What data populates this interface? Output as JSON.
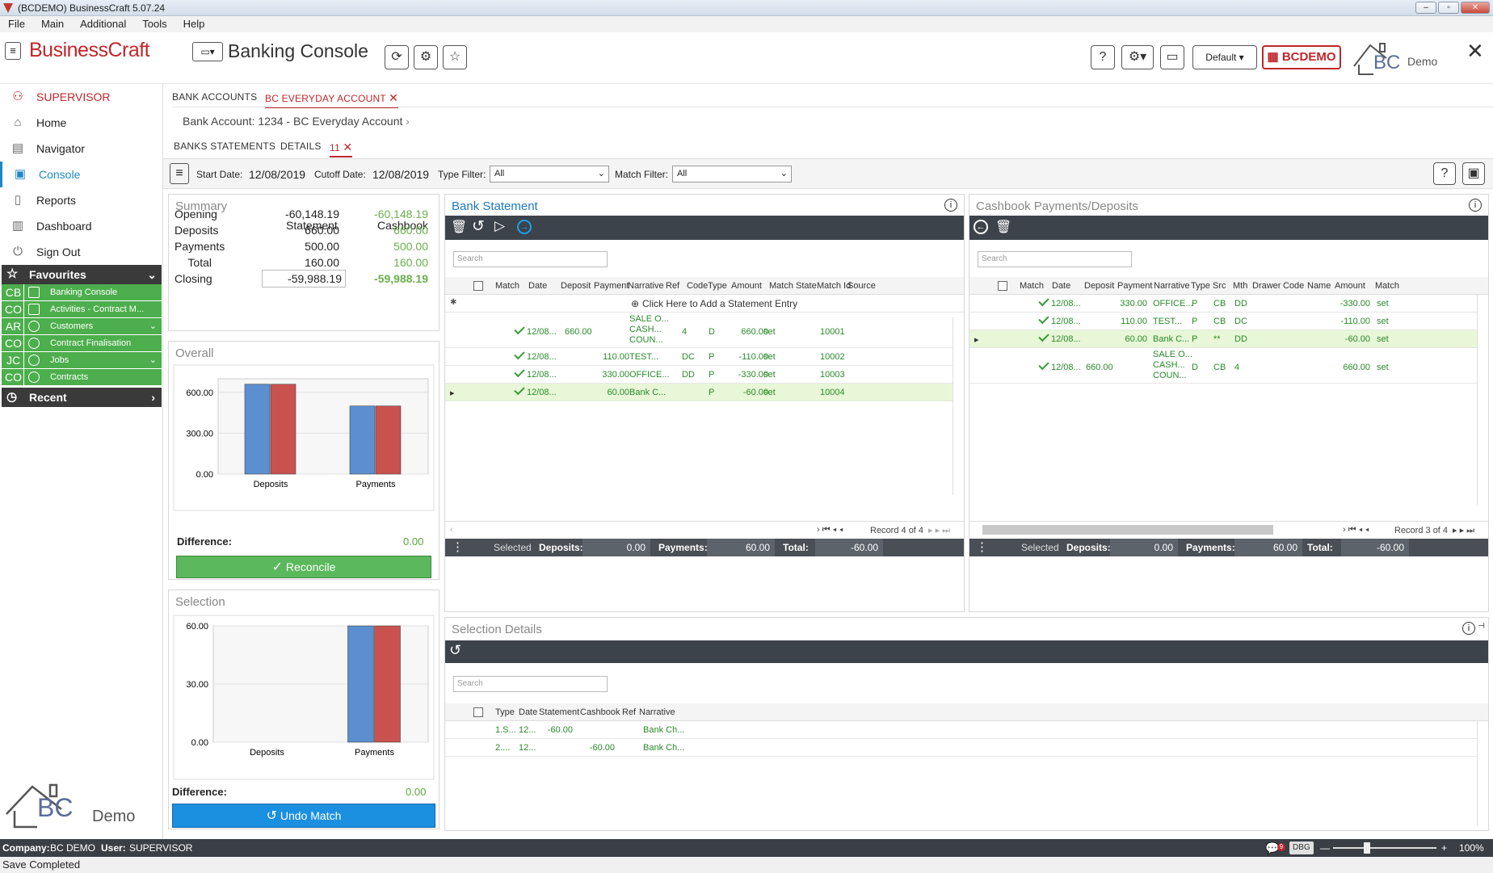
{
  "window": {
    "title": "(BCDEMO) BusinessCraft  5.07.24"
  },
  "menu": [
    "File",
    "Main",
    "Additional",
    "Tools",
    "Help"
  ],
  "header": {
    "brand": "BusinessCraft",
    "module_title": "Banking Console",
    "profile_label": "Default",
    "company_badge": "BCDEMO",
    "logo_text": "BC",
    "logo_sub": "Demo"
  },
  "sidebar": {
    "user": "SUPERVISOR",
    "items": [
      "Home",
      "Navigator",
      "Console",
      "Reports",
      "Dashboard",
      "Sign Out"
    ],
    "favourites_label": "Favourites",
    "favourites": [
      {
        "code": "CB",
        "label": "Banking Console"
      },
      {
        "code": "CO",
        "label": "Activities - Contract M..."
      },
      {
        "code": "AR",
        "label": "Customers"
      },
      {
        "code": "CO",
        "label": "Contract Finalisation"
      },
      {
        "code": "JC",
        "label": "Jobs"
      },
      {
        "code": "CO",
        "label": "Contracts"
      }
    ],
    "recent_label": "Recent",
    "logo_text": "BC",
    "logo_sub": "Demo"
  },
  "tabs": {
    "bank_accounts": "BANK ACCOUNTS",
    "active": "BC EVERYDAY ACCOUNT"
  },
  "breadcrumb": "Bank Account: 1234 - BC Everyday Account",
  "subtabs": {
    "statements": "BANKS STATEMENTS",
    "details": "DETAILS",
    "active": "11"
  },
  "filters": {
    "start_label": "Start Date:",
    "start": "12/08/2019",
    "cutoff_label": "Cutoff Date:",
    "cutoff": "12/08/2019",
    "type_label": "Type Filter:",
    "type": "All",
    "match_label": "Match Filter:",
    "match": "All"
  },
  "summary": {
    "title": "Summary",
    "col_statement": "Statement",
    "col_cashbook": "Cashbook",
    "rows": [
      {
        "label": "Opening",
        "statement": "-60,148.19",
        "cashbook": "-60,148.19"
      },
      {
        "label": "Deposits",
        "statement": "660.00",
        "cashbook": "660.00"
      },
      {
        "label": "Payments",
        "statement": "500.00",
        "cashbook": "500.00"
      },
      {
        "label": "Total",
        "statement": "160.00",
        "cashbook": "160.00"
      },
      {
        "label": "Closing",
        "statement": "-59,988.19",
        "cashbook": "-59,988.19"
      }
    ]
  },
  "overall": {
    "title": "Overall",
    "difference_label": "Difference:",
    "difference": "0.00",
    "button": "Reconcile"
  },
  "selection": {
    "title": "Selection",
    "difference_label": "Difference:",
    "difference": "0.00",
    "button": "Undo Match"
  },
  "chart_data": [
    {
      "type": "bar",
      "title": "Overall",
      "categories": [
        "Deposits",
        "Payments"
      ],
      "ylim": [
        0,
        700
      ],
      "yticks": [
        "600.00",
        "300.00",
        "0.00"
      ],
      "series": [
        {
          "values": [
            660,
            500
          ]
        },
        {
          "values": [
            660,
            500
          ]
        }
      ],
      "colors": [
        "#5b8fd0",
        "#c9524f"
      ]
    },
    {
      "type": "bar",
      "title": "Selection",
      "categories": [
        "Deposits",
        "Payments"
      ],
      "ylim": [
        0,
        60
      ],
      "yticks": [
        "60.00",
        "30.00",
        "0.00"
      ],
      "series": [
        {
          "values": [
            0,
            60
          ]
        },
        {
          "values": [
            0,
            60
          ]
        }
      ],
      "colors": [
        "#5b8fd0",
        "#c9524f"
      ]
    }
  ],
  "bank_statement": {
    "title": "Bank Statement",
    "search": "Search",
    "columns": [
      "Match",
      "Date",
      "Deposit",
      "Payment",
      "Narrative",
      "Ref",
      "Code",
      "Type",
      "Amount",
      "Match State",
      "Match Id",
      "Source"
    ],
    "add_entry": "Click Here to Add a Statement Entry",
    "rows": [
      {
        "date": "12/08...",
        "deposit": "660.00",
        "payment": "",
        "narrative": [
          "SALE O...",
          "CASH...",
          "COUN..."
        ],
        "ref": "",
        "code": "4",
        "type": "D",
        "amount": "660.00",
        "state": "set",
        "id": "10001"
      },
      {
        "date": "12/08...",
        "deposit": "",
        "payment": "110.00",
        "narrative": [
          "TEST..."
        ],
        "ref": "",
        "code": "DC",
        "type": "P",
        "amount": "-110.00",
        "state": "set",
        "id": "10002"
      },
      {
        "date": "12/08...",
        "deposit": "",
        "payment": "330.00",
        "narrative": [
          "OFFICE..."
        ],
        "ref": "",
        "code": "DD",
        "type": "P",
        "amount": "-330.00",
        "state": "set",
        "id": "10003"
      },
      {
        "date": "12/08...",
        "deposit": "",
        "payment": "60.00",
        "narrative": [
          "Bank C..."
        ],
        "ref": "",
        "code": "",
        "type": "P",
        "amount": "-60.00",
        "state": "set",
        "id": "10004"
      }
    ],
    "record": "Record 4 of 4",
    "footer": {
      "selected": "Selected",
      "deposits_label": "Deposits:",
      "deposits": "0.00",
      "payments_label": "Payments:",
      "payments": "60.00",
      "total_label": "Total:",
      "total": "-60.00"
    }
  },
  "cashbook": {
    "title": "Cashbook Payments/Deposits",
    "search": "Search",
    "columns": [
      "Match",
      "Date",
      "Deposit",
      "Payment",
      "Narrative",
      "Type",
      "Src",
      "Mth",
      "Drawer",
      "Code",
      "Name",
      "Amount",
      "Match"
    ],
    "rows": [
      {
        "date": "12/08...",
        "deposit": "",
        "payment": "330.00",
        "narrative": [
          "OFFICE..."
        ],
        "type": "P",
        "src": "CB",
        "mth": "DD",
        "amount": "-330.00",
        "match": "set"
      },
      {
        "date": "12/08...",
        "deposit": "",
        "payment": "110.00",
        "narrative": [
          "TEST..."
        ],
        "type": "P",
        "src": "CB",
        "mth": "DC",
        "amount": "-110.00",
        "match": "set"
      },
      {
        "date": "12/08...",
        "deposit": "",
        "payment": "60.00",
        "narrative": [
          "Bank C..."
        ],
        "type": "P",
        "src": "**",
        "mth": "DD",
        "amount": "-60.00",
        "match": "set"
      },
      {
        "date": "12/08...",
        "deposit": "660.00",
        "payment": "",
        "narrative": [
          "SALE O...",
          "CASH...",
          "COUN..."
        ],
        "type": "D",
        "src": "CB",
        "mth": "4",
        "amount": "660.00",
        "match": "set"
      }
    ],
    "record": "Record 3 of 4",
    "footer": {
      "selected": "Selected",
      "deposits_label": "Deposits:",
      "deposits": "0.00",
      "payments_label": "Payments:",
      "payments": "60.00",
      "total_label": "Total:",
      "total": "-60.00"
    }
  },
  "selection_details": {
    "title": "Selection Details",
    "search": "Search",
    "columns": [
      "Type",
      "Date",
      "Statement",
      "Cashbook",
      "Ref",
      "Narrative"
    ],
    "rows": [
      {
        "type": "1.S...",
        "date": "12...",
        "statement": "-60.00",
        "cashbook": "",
        "ref": "",
        "narrative": "Bank Ch..."
      },
      {
        "type": "2....",
        "date": "12...",
        "statement": "",
        "cashbook": "-60.00",
        "ref": "",
        "narrative": "Bank Ch..."
      }
    ]
  },
  "status": {
    "company_label": "Company:",
    "company": "BC DEMO",
    "user_label": "User:",
    "user": "SUPERVISOR",
    "badge": "DBG",
    "zoom": "100%",
    "notif_count": "9"
  },
  "bottom": "Save Completed"
}
